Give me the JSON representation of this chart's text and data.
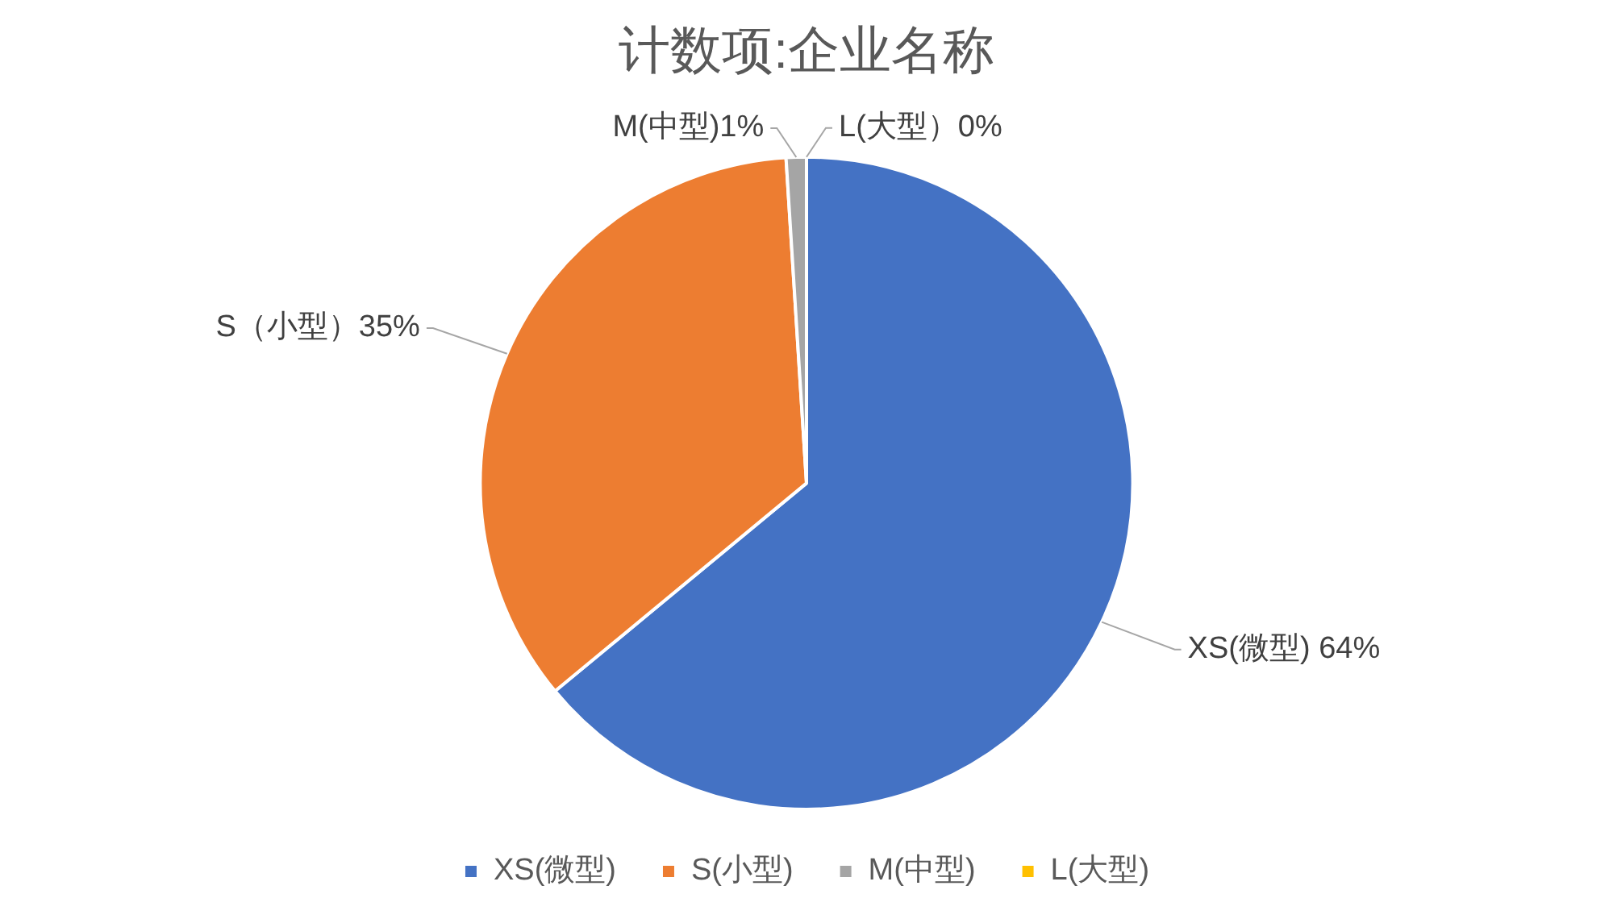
{
  "chart_data": {
    "type": "pie",
    "title": "计数项:企业名称",
    "categories": [
      "XS(微型)",
      "S(小型)",
      "M(中型)",
      "L(大型)"
    ],
    "values": [
      64,
      35,
      1,
      0
    ],
    "colors": [
      "#4472c4",
      "#ed7d31",
      "#a5a5a5",
      "#ffc000"
    ],
    "value_labels": [
      "XS(微型) 64%",
      "S（小型）35%",
      "M(中型)1%",
      "L(大型）0%"
    ],
    "legend": "bottom"
  }
}
